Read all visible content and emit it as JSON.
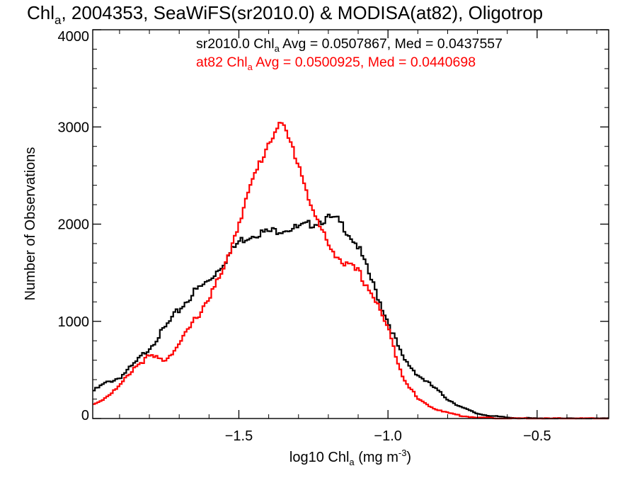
{
  "chart_data": {
    "type": "line",
    "title": {
      "prefix": "Chl",
      "sub": "a",
      "rest": ", 2004353, SeaWiFS(sr2010.0) & MODISA(at82), Oligotrop"
    },
    "xlabel": {
      "prefix": "log10 Chl",
      "sub": "a",
      "mid": " (mg m",
      "sup": "-3",
      "suffix": ")"
    },
    "ylabel": "Number of Observations",
    "xlim": [
      -1.99,
      -0.26
    ],
    "ylim": [
      0,
      4000
    ],
    "xticks": [
      {
        "value": -1.5,
        "label": "−1.5"
      },
      {
        "value": -1.0,
        "label": "−1.0"
      },
      {
        "value": -0.5,
        "label": "−0.5"
      }
    ],
    "yticks": [
      {
        "value": 0,
        "label": "0"
      },
      {
        "value": 1000,
        "label": "1000"
      },
      {
        "value": 2000,
        "label": "2000"
      },
      {
        "value": 3000,
        "label": "3000"
      },
      {
        "value": 4000,
        "label": "4000"
      }
    ],
    "series": [
      {
        "name": "sr2010.0",
        "color": "#000000",
        "annotation": {
          "prefix": "sr2010.0 Chl",
          "sub": "a",
          "rest": " Avg = 0.0507867, Med = 0.0437557"
        },
        "x": [
          -1.99,
          -1.95,
          -1.9,
          -1.85,
          -1.8,
          -1.75,
          -1.7,
          -1.65,
          -1.6,
          -1.55,
          -1.5,
          -1.45,
          -1.4,
          -1.35,
          -1.3,
          -1.25,
          -1.2,
          -1.17,
          -1.15,
          -1.1,
          -1.05,
          -1.0,
          -0.95,
          -0.9,
          -0.85,
          -0.8,
          -0.75,
          -0.7,
          -0.65,
          -0.6,
          -0.5,
          -0.26
        ],
        "y": [
          280,
          360,
          420,
          560,
          730,
          920,
          1120,
          1300,
          1420,
          1610,
          1820,
          1900,
          1920,
          1950,
          1960,
          2010,
          2060,
          2040,
          1980,
          1770,
          1380,
          1000,
          620,
          450,
          330,
          200,
          110,
          50,
          25,
          10,
          0,
          0
        ]
      },
      {
        "name": "at82",
        "color": "#ff0000",
        "annotation": {
          "prefix": "at82 Chl",
          "sub": "a",
          "rest": " Avg = 0.0500925, Med = 0.0440698"
        },
        "x": [
          -1.99,
          -1.95,
          -1.9,
          -1.85,
          -1.8,
          -1.75,
          -1.7,
          -1.65,
          -1.6,
          -1.55,
          -1.5,
          -1.45,
          -1.4,
          -1.37,
          -1.35,
          -1.3,
          -1.25,
          -1.2,
          -1.15,
          -1.1,
          -1.05,
          -1.0,
          -0.95,
          -0.9,
          -0.85,
          -0.8,
          -0.75,
          -0.7,
          -0.65,
          -0.6,
          -0.5,
          -0.26
        ],
        "y": [
          140,
          210,
          330,
          530,
          640,
          600,
          760,
          1000,
          1250,
          1520,
          2020,
          2480,
          2840,
          3020,
          3000,
          2630,
          2110,
          1790,
          1600,
          1510,
          1270,
          920,
          430,
          200,
          110,
          60,
          25,
          10,
          5,
          0,
          0,
          0
        ]
      }
    ]
  }
}
